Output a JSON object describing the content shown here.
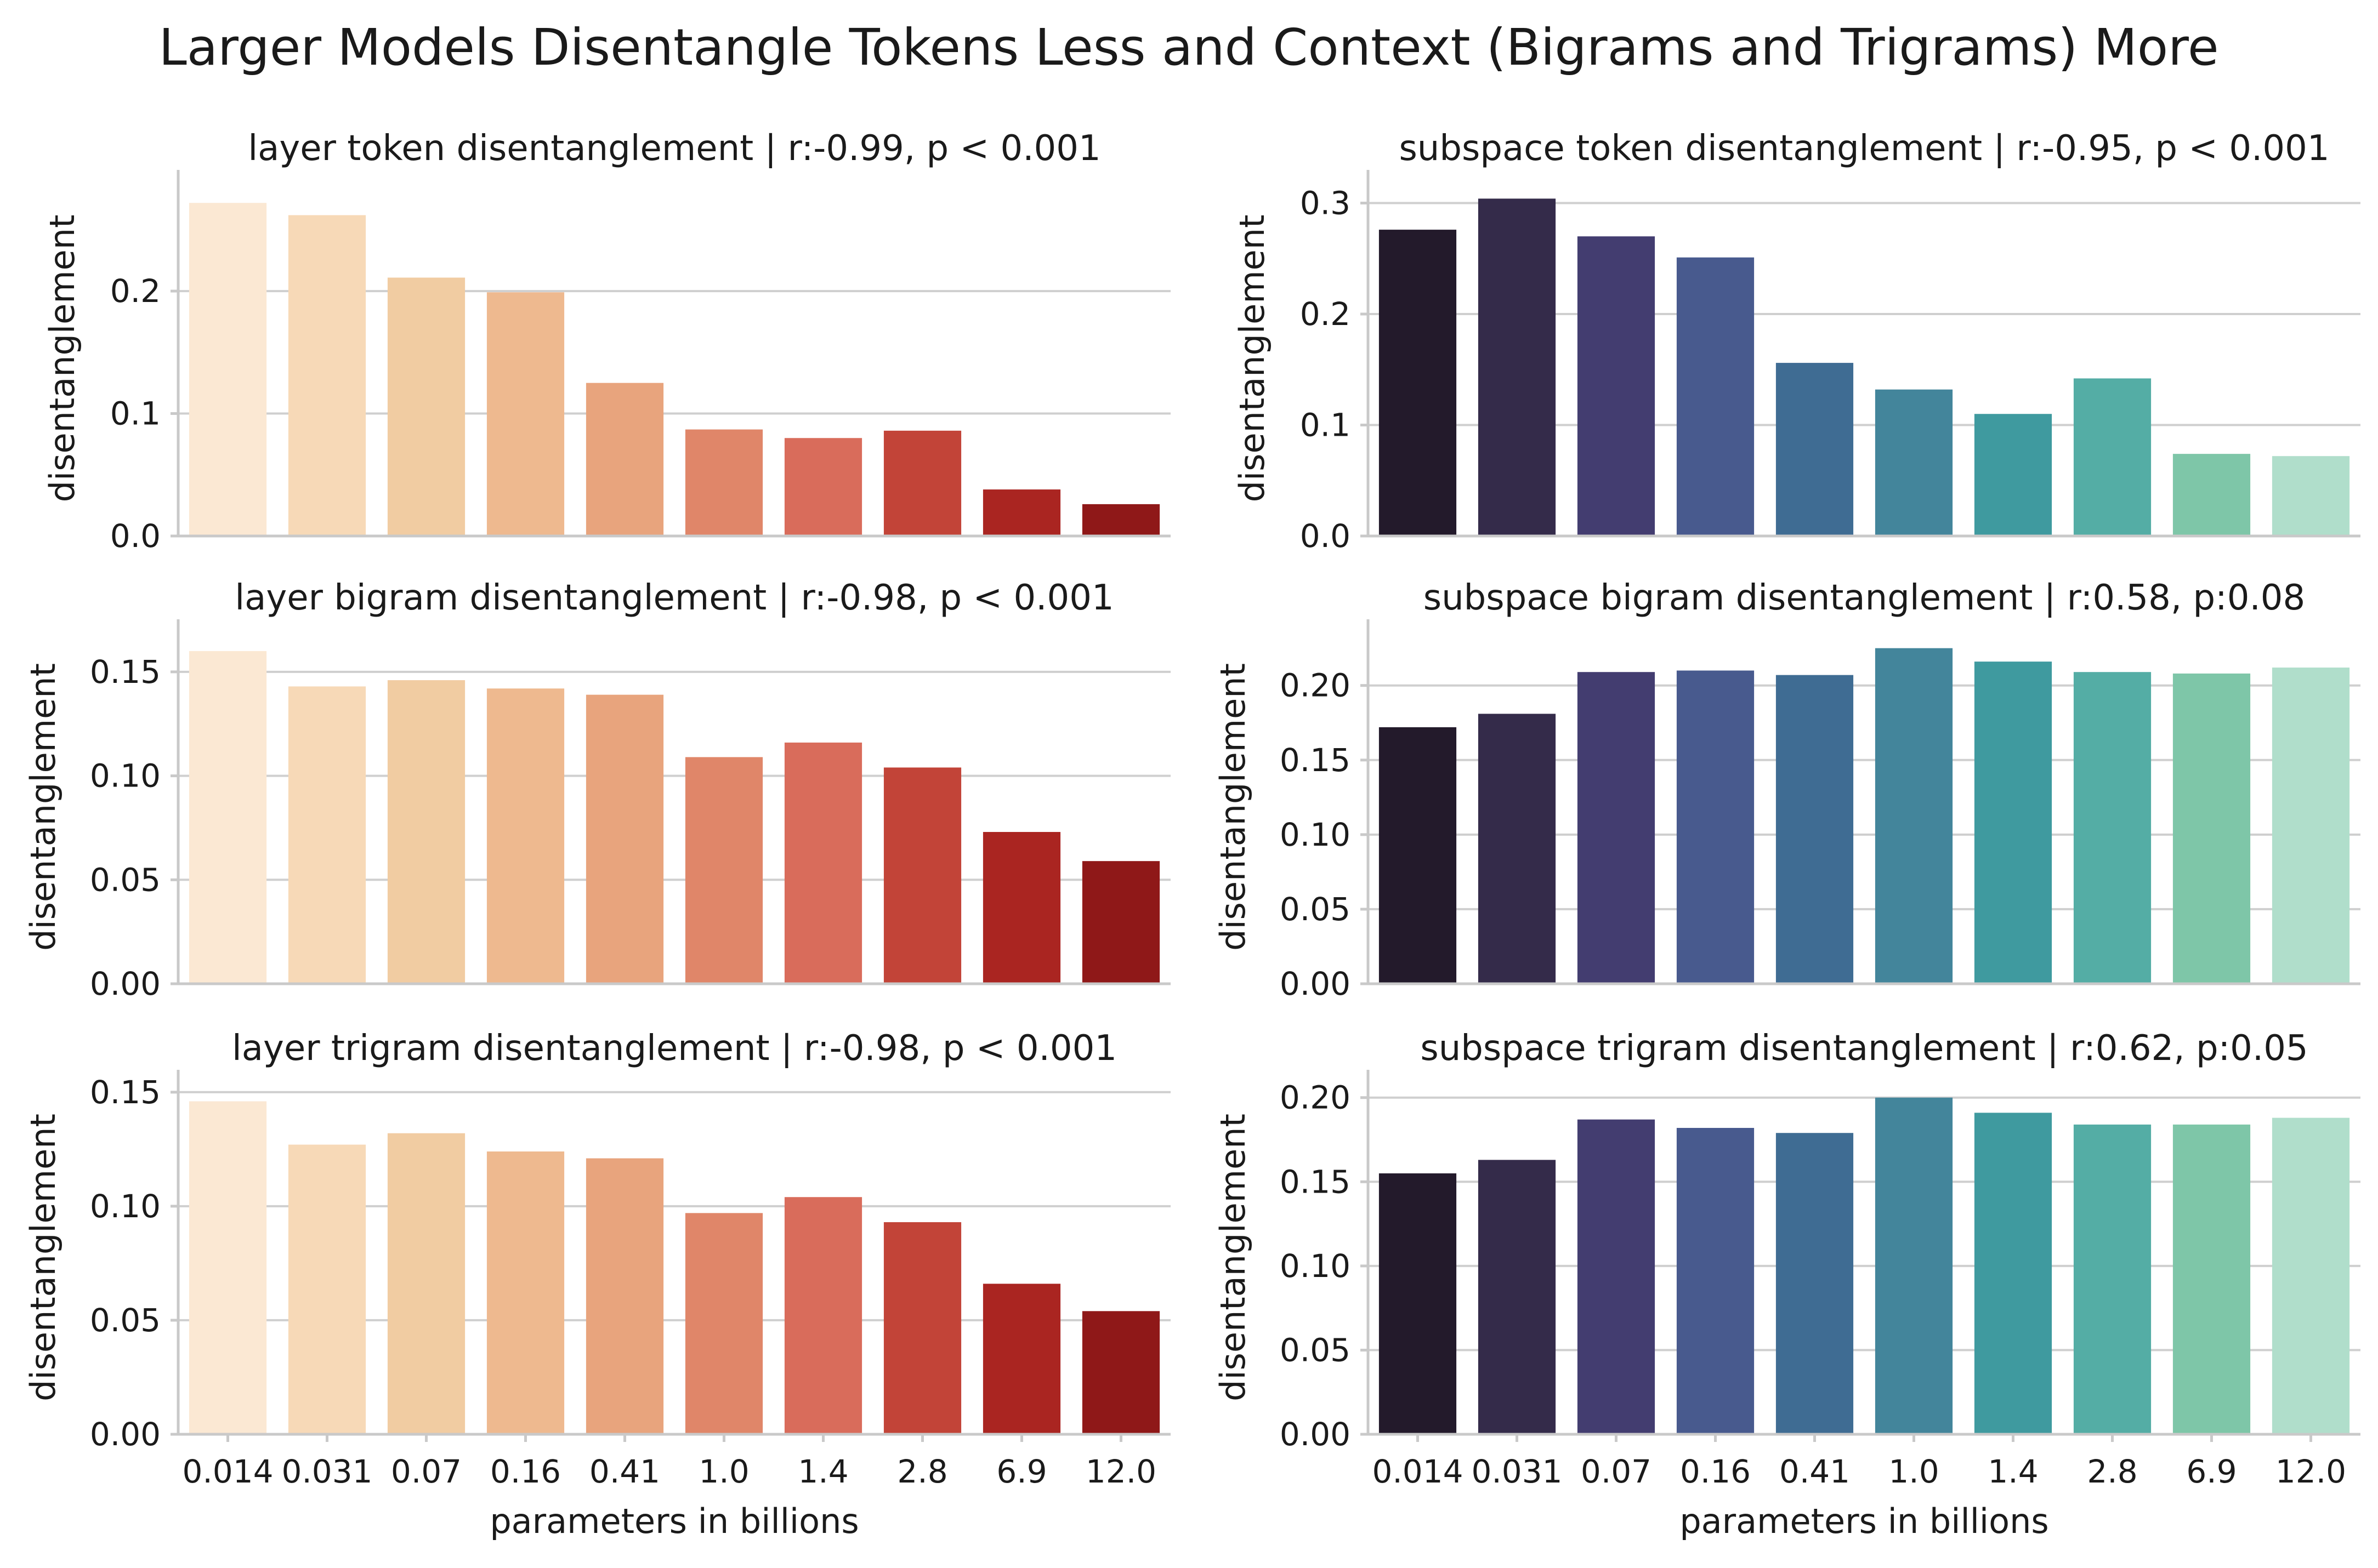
{
  "suptitle": "Larger Models Disentangle Tokens Less and Context (Bigrams and Trigrams) More",
  "palettes": {
    "layer": [
      "#fbe8d3",
      "#f7d9b7",
      "#f1cca2",
      "#eeb98f",
      "#e8a47d",
      "#e08669",
      "#d96c5b",
      "#c24438",
      "#aa2521",
      "#8f1818"
    ],
    "subspace": [
      "#231a2b",
      "#342b4a",
      "#433d70",
      "#485a8e",
      "#3f6c93",
      "#43859b",
      "#3f9a9f",
      "#54ada5",
      "#7ec6a8",
      "#b0decb"
    ]
  },
  "chart_data": [
    {
      "type": "bar",
      "row": 0,
      "col": 0,
      "palette": "layer",
      "title": "layer token disentanglement | r:-0.99, p < 0.001",
      "ylabel": "disentanglement",
      "xlabel": "",
      "categories": [
        "0.014",
        "0.031",
        "0.07",
        "0.16",
        "0.41",
        "1.0",
        "1.4",
        "2.8",
        "6.9",
        "12.0"
      ],
      "values": [
        0.272,
        0.262,
        0.211,
        0.199,
        0.125,
        0.087,
        0.08,
        0.086,
        0.038,
        0.026
      ],
      "ylim": [
        0,
        0.29
      ],
      "yticks": [
        0.0,
        0.1,
        0.2
      ],
      "ytick_labels": [
        "0.0",
        "0.1",
        "0.2"
      ]
    },
    {
      "type": "bar",
      "row": 0,
      "col": 1,
      "palette": "subspace",
      "title": "subspace token disentanglement | r:-0.95, p < 0.001",
      "ylabel": "disentanglement",
      "xlabel": "",
      "categories": [
        "0.014",
        "0.031",
        "0.07",
        "0.16",
        "0.41",
        "1.0",
        "1.4",
        "2.8",
        "6.9",
        "12.0"
      ],
      "values": [
        0.276,
        0.304,
        0.27,
        0.251,
        0.156,
        0.132,
        0.11,
        0.142,
        0.074,
        0.072
      ],
      "ylim": [
        0,
        0.32
      ],
      "yticks": [
        0.0,
        0.1,
        0.2,
        0.3
      ],
      "ytick_labels": [
        "0.0",
        "0.1",
        "0.2",
        "0.3"
      ]
    },
    {
      "type": "bar",
      "row": 1,
      "col": 0,
      "palette": "layer",
      "title": "layer bigram disentanglement | r:-0.98, p < 0.001",
      "ylabel": "disentanglement",
      "xlabel": "",
      "categories": [
        "0.014",
        "0.031",
        "0.07",
        "0.16",
        "0.41",
        "1.0",
        "1.4",
        "2.8",
        "6.9",
        "12.0"
      ],
      "values": [
        0.16,
        0.143,
        0.146,
        0.142,
        0.139,
        0.109,
        0.116,
        0.104,
        0.073,
        0.059
      ],
      "ylim": [
        0,
        0.17
      ],
      "yticks": [
        0.0,
        0.05,
        0.1,
        0.15
      ],
      "ytick_labels": [
        "0.00",
        "0.05",
        "0.10",
        "0.15"
      ]
    },
    {
      "type": "bar",
      "row": 1,
      "col": 1,
      "palette": "subspace",
      "title": "subspace bigram disentanglement | r:0.58, p:0.08",
      "ylabel": "disentanglement",
      "xlabel": "",
      "categories": [
        "0.014",
        "0.031",
        "0.07",
        "0.16",
        "0.41",
        "1.0",
        "1.4",
        "2.8",
        "6.9",
        "12.0"
      ],
      "values": [
        0.172,
        0.181,
        0.209,
        0.21,
        0.207,
        0.225,
        0.216,
        0.209,
        0.208,
        0.212
      ],
      "ylim": [
        0,
        0.237
      ],
      "yticks": [
        0.0,
        0.05,
        0.1,
        0.15,
        0.2
      ],
      "ytick_labels": [
        "0.00",
        "0.05",
        "0.10",
        "0.15",
        "0.20"
      ]
    },
    {
      "type": "bar",
      "row": 2,
      "col": 0,
      "palette": "layer",
      "title": "layer trigram disentanglement | r:-0.98, p < 0.001",
      "ylabel": "disentanglement",
      "xlabel": "parameters in billions",
      "categories": [
        "0.014",
        "0.031",
        "0.07",
        "0.16",
        "0.41",
        "1.0",
        "1.4",
        "2.8",
        "6.9",
        "12.0"
      ],
      "values": [
        0.146,
        0.127,
        0.132,
        0.124,
        0.121,
        0.097,
        0.104,
        0.093,
        0.066,
        0.054
      ],
      "ylim": [
        0,
        0.155
      ],
      "yticks": [
        0.0,
        0.05,
        0.1,
        0.15
      ],
      "ytick_labels": [
        "0.00",
        "0.05",
        "0.10",
        "0.15"
      ]
    },
    {
      "type": "bar",
      "row": 2,
      "col": 1,
      "palette": "subspace",
      "title": "subspace trigram disentanglement | r:0.62, p:0.05",
      "ylabel": "disentanglement",
      "xlabel": "parameters in billions",
      "categories": [
        "0.014",
        "0.031",
        "0.07",
        "0.16",
        "0.41",
        "1.0",
        "1.4",
        "2.8",
        "6.9",
        "12.0"
      ],
      "values": [
        0.155,
        0.163,
        0.187,
        0.182,
        0.179,
        0.2,
        0.191,
        0.184,
        0.184,
        0.188
      ],
      "ylim": [
        0,
        0.21
      ],
      "yticks": [
        0.0,
        0.05,
        0.1,
        0.15,
        0.2
      ],
      "ytick_labels": [
        "0.00",
        "0.05",
        "0.10",
        "0.15",
        "0.20"
      ]
    }
  ]
}
